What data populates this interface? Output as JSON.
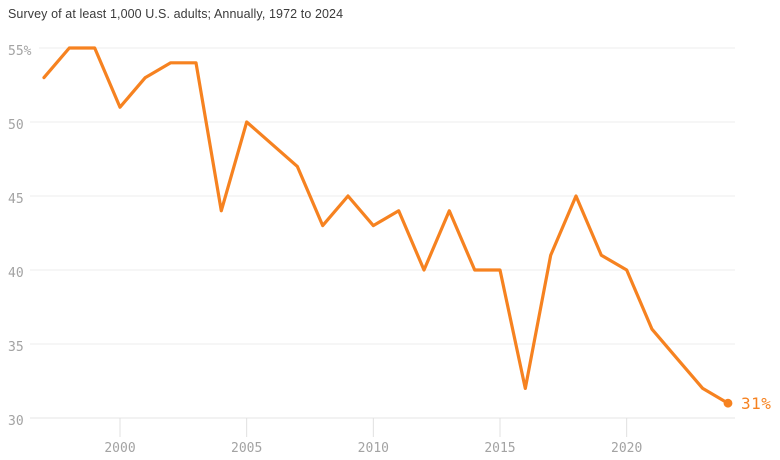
{
  "header": {
    "subtitle": "Survey of at least 1,000 U.S. adults; Annually, 1972 to 2024"
  },
  "chart_data": {
    "type": "line",
    "x": [
      1997,
      1998,
      1999,
      2000,
      2001,
      2002,
      2003,
      2004,
      2005,
      2007,
      2008,
      2009,
      2010,
      2011,
      2012,
      2013,
      2014,
      2015,
      2016,
      2017,
      2018,
      2019,
      2020,
      2021,
      2022,
      2023,
      2024
    ],
    "y": [
      53,
      55,
      55,
      51,
      53,
      54,
      54,
      44,
      50,
      47,
      43,
      45,
      43,
      44,
      40,
      44,
      40,
      40,
      32,
      41,
      45,
      41,
      40,
      36,
      34,
      32,
      31
    ],
    "xlim": [
      1997,
      2024
    ],
    "ylim": [
      30,
      55
    ],
    "xticks": [
      2000,
      2005,
      2010,
      2015,
      2020
    ],
    "yticks": [
      {
        "value": 55,
        "label": "55%"
      },
      {
        "value": 50,
        "label": "50"
      },
      {
        "value": 45,
        "label": "45"
      },
      {
        "value": 40,
        "label": "40"
      },
      {
        "value": 35,
        "label": "35"
      },
      {
        "value": 30,
        "label": "30"
      }
    ],
    "grid": "horizontal",
    "legend": "none",
    "end_point": {
      "year": 2024,
      "value": 31
    },
    "end_label": "31%",
    "colors": {
      "line": "#f68220",
      "end_dot": "#f68220",
      "end_label": "#f68220",
      "gridline": "#ededed",
      "baseline": "#e4e4e4",
      "tick_mark": "#e0e0e0",
      "axis_text": "#a3a3a3"
    }
  }
}
